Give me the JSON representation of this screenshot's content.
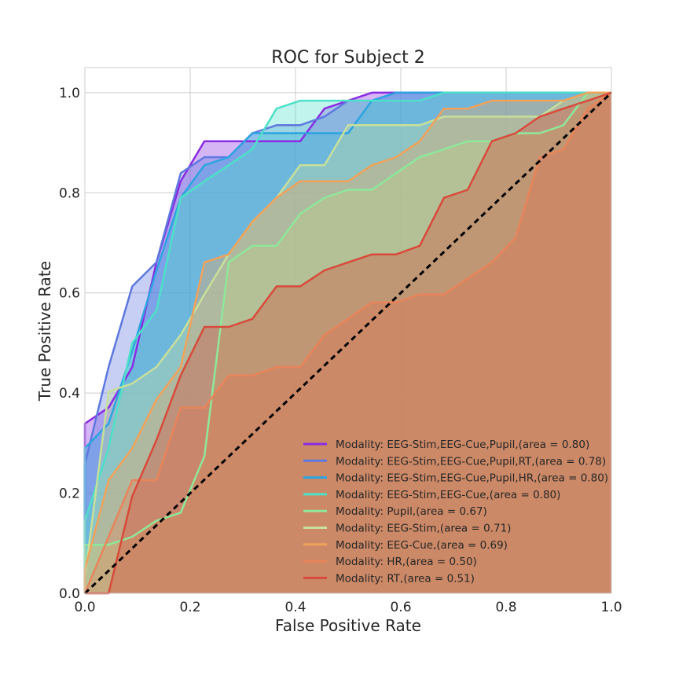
{
  "chart_data": {
    "type": "area",
    "title": "ROC for Subject 2",
    "xlabel": "False Positive Rate",
    "ylabel": "True Positive Rate",
    "xlim": [
      0,
      1
    ],
    "ylim": [
      0,
      1.05
    ],
    "x_ticks": [
      "0.0",
      "0.2",
      "0.4",
      "0.6",
      "0.8",
      "1.0"
    ],
    "y_ticks": [
      "0.0",
      "0.2",
      "0.4",
      "0.6",
      "0.8",
      "1.0"
    ],
    "grid": true,
    "legend_position": "lower-right",
    "diagonal": {
      "x": [
        0,
        1
      ],
      "y": [
        0,
        1
      ],
      "color": "#000000",
      "style": "dashed"
    },
    "series": [
      {
        "name": "Modality: EEG-Stim,EEG-Cue,Pupil,(area = 0.80)",
        "color": "#8a2be2",
        "x": [
          0,
          0,
          0.045,
          0.09,
          0.136,
          0.182,
          0.227,
          0.273,
          0.318,
          0.364,
          0.409,
          0.455,
          0.5,
          0.545,
          0.591,
          0.636,
          0.682,
          1
        ],
        "y": [
          0,
          0.339,
          0.371,
          0.452,
          0.661,
          0.823,
          0.903,
          0.903,
          0.903,
          0.903,
          0.903,
          0.968,
          0.984,
          1.0,
          1.0,
          1.0,
          1.0,
          1.0
        ]
      },
      {
        "name": "Modality: EEG-Stim,EEG-Cue,Pupil,RT,(area = 0.78)",
        "color": "#5e78e0",
        "x": [
          0,
          0,
          0.045,
          0.09,
          0.136,
          0.182,
          0.227,
          0.273,
          0.318,
          0.364,
          0.409,
          0.455,
          0.5,
          0.545,
          0.591,
          0.636,
          1
        ],
        "y": [
          0,
          0.258,
          0.452,
          0.613,
          0.661,
          0.839,
          0.871,
          0.871,
          0.919,
          0.935,
          0.935,
          0.952,
          0.984,
          0.984,
          1.0,
          1.0,
          1.0
        ]
      },
      {
        "name": "Modality: EEG-Stim,EEG-Cue,Pupil,HR,(area = 0.80)",
        "color": "#2ca4e0",
        "x": [
          0,
          0,
          0.045,
          0.09,
          0.136,
          0.182,
          0.227,
          0.273,
          0.318,
          0.364,
          0.409,
          0.455,
          0.5,
          0.545,
          0.591,
          1
        ],
        "y": [
          0,
          0.29,
          0.339,
          0.484,
          0.645,
          0.79,
          0.855,
          0.871,
          0.919,
          0.919,
          0.919,
          0.919,
          0.919,
          0.984,
          1.0,
          1.0
        ]
      },
      {
        "name": "Modality: EEG-Stim,EEG-Cue,(area = 0.80)",
        "color": "#4ee0c8",
        "x": [
          0,
          0,
          0.045,
          0.09,
          0.136,
          0.182,
          0.227,
          0.273,
          0.318,
          0.364,
          0.409,
          0.455,
          0.5,
          0.545,
          0.591,
          0.636,
          0.682,
          1
        ],
        "y": [
          0,
          0.145,
          0.29,
          0.5,
          0.565,
          0.79,
          0.823,
          0.855,
          0.887,
          0.968,
          0.984,
          0.984,
          0.984,
          0.984,
          0.984,
          0.984,
          1.0,
          1.0
        ]
      },
      {
        "name": "Modality: Pupil,(area = 0.67)",
        "color": "#8ee89a",
        "x": [
          0,
          0,
          0.045,
          0.09,
          0.136,
          0.182,
          0.227,
          0.273,
          0.318,
          0.364,
          0.409,
          0.455,
          0.5,
          0.545,
          0.591,
          0.636,
          0.682,
          0.727,
          0.773,
          0.818,
          0.864,
          0.909,
          0.955,
          1
        ],
        "y": [
          0,
          0.097,
          0.097,
          0.113,
          0.145,
          0.161,
          0.274,
          0.661,
          0.694,
          0.694,
          0.758,
          0.79,
          0.806,
          0.806,
          0.839,
          0.871,
          0.887,
          0.903,
          0.903,
          0.919,
          0.919,
          0.935,
          1.0,
          1.0
        ]
      },
      {
        "name": "Modality: EEG-Stim,(area = 0.71)",
        "color": "#c8e09a",
        "x": [
          0,
          0,
          0.045,
          0.09,
          0.136,
          0.182,
          0.227,
          0.273,
          0.318,
          0.364,
          0.409,
          0.455,
          0.5,
          0.545,
          0.591,
          0.636,
          0.682,
          0.727,
          0.773,
          0.818,
          0.864,
          0.909,
          0.955,
          1
        ],
        "y": [
          0,
          0.032,
          0.403,
          0.419,
          0.452,
          0.516,
          0.597,
          0.677,
          0.742,
          0.79,
          0.855,
          0.855,
          0.935,
          0.935,
          0.935,
          0.935,
          0.952,
          0.952,
          0.952,
          0.952,
          0.952,
          0.984,
          1.0,
          1.0
        ]
      },
      {
        "name": "Modality: EEG-Cue,(area = 0.69)",
        "color": "#f0a25a",
        "x": [
          0,
          0,
          0.045,
          0.09,
          0.136,
          0.182,
          0.227,
          0.273,
          0.318,
          0.364,
          0.409,
          0.455,
          0.5,
          0.545,
          0.591,
          0.636,
          0.682,
          0.727,
          0.773,
          0.818,
          0.864,
          0.909,
          0.955,
          1
        ],
        "y": [
          0,
          0.048,
          0.226,
          0.29,
          0.387,
          0.452,
          0.661,
          0.677,
          0.742,
          0.79,
          0.823,
          0.823,
          0.823,
          0.855,
          0.871,
          0.903,
          0.968,
          0.968,
          0.984,
          0.984,
          0.984,
          0.984,
          1.0,
          1.0
        ]
      },
      {
        "name": "Modality: HR,(area = 0.50)",
        "color": "#e8845a",
        "x": [
          0,
          0,
          0.045,
          0.09,
          0.136,
          0.182,
          0.227,
          0.273,
          0.318,
          0.364,
          0.409,
          0.455,
          0.5,
          0.545,
          0.591,
          0.636,
          0.682,
          0.727,
          0.773,
          0.818,
          0.864,
          0.909,
          0.955,
          1
        ],
        "y": [
          0,
          0.0,
          0.113,
          0.226,
          0.226,
          0.371,
          0.371,
          0.435,
          0.435,
          0.452,
          0.452,
          0.516,
          0.548,
          0.581,
          0.581,
          0.597,
          0.597,
          0.629,
          0.661,
          0.71,
          0.871,
          0.887,
          0.968,
          1.0
        ]
      },
      {
        "name": "Modality: RT,(area = 0.51)",
        "color": "#d84a3a",
        "x": [
          0,
          0.045,
          0.09,
          0.136,
          0.182,
          0.227,
          0.273,
          0.318,
          0.364,
          0.409,
          0.455,
          0.5,
          0.545,
          0.591,
          0.636,
          0.682,
          0.727,
          0.773,
          0.818,
          0.864,
          0.909,
          0.955,
          1
        ],
        "y": [
          0,
          0.0,
          0.194,
          0.306,
          0.435,
          0.532,
          0.532,
          0.548,
          0.613,
          0.613,
          0.645,
          0.661,
          0.677,
          0.677,
          0.694,
          0.79,
          0.806,
          0.903,
          0.919,
          0.952,
          0.968,
          0.984,
          1.0
        ]
      }
    ]
  }
}
